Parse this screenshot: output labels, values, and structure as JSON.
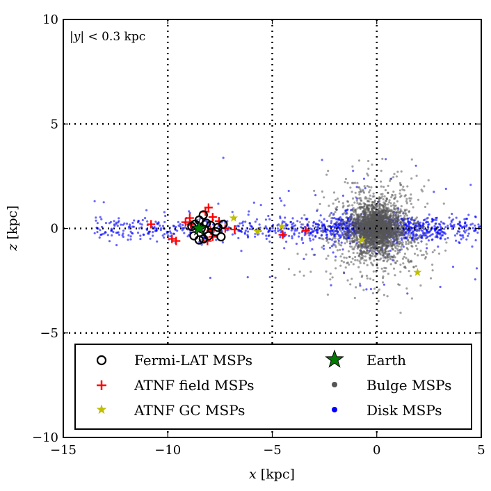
{
  "chart_data": {
    "type": "scatter",
    "title": "",
    "annotation": "|y| < 0.3 kpc",
    "xlabel": "x [kpc]",
    "ylabel": "z [kpc]",
    "xlim": [
      -15,
      5
    ],
    "ylim": [
      -10,
      10
    ],
    "xticks": [
      -15,
      -10,
      -5,
      0,
      5
    ],
    "yticks": [
      -10,
      -5,
      0,
      5,
      10
    ],
    "xtick_labels": [
      "−15",
      "−10",
      "−5",
      "0",
      "5"
    ],
    "ytick_labels": [
      "−10",
      "−5",
      "0",
      "5",
      "10"
    ],
    "grid": "dotted at x=-10,-5,0 and z=-5,0,5",
    "legend_position": "lower-center",
    "series": [
      {
        "name": "Fermi-LAT MSPs",
        "marker": "circle-open",
        "color": "#000000",
        "points": [
          [
            -8.3,
            0.65
          ],
          [
            -8.5,
            0.4
          ],
          [
            -8.15,
            0.25
          ],
          [
            -8.7,
            0.2
          ],
          [
            -8.25,
            -0.05
          ],
          [
            -7.95,
            0.15
          ],
          [
            -7.6,
            0.05
          ],
          [
            -7.35,
            0.2
          ],
          [
            -7.7,
            -0.15
          ],
          [
            -7.45,
            -0.4
          ],
          [
            -8.05,
            -0.35
          ],
          [
            -8.3,
            -0.5
          ],
          [
            -8.5,
            -0.55
          ],
          [
            -8.75,
            -0.35
          ],
          [
            -8.4,
            0.0
          ],
          [
            -8.85,
            0.1
          ]
        ]
      },
      {
        "name": "ATNF field MSPs",
        "marker": "plus",
        "color": "#ff0000",
        "points": [
          [
            -10.8,
            0.2
          ],
          [
            -9.8,
            -0.5
          ],
          [
            -9.6,
            -0.6
          ],
          [
            -9.15,
            0.3
          ],
          [
            -8.95,
            0.5
          ],
          [
            -8.05,
            1.0
          ],
          [
            -8.2,
            0.8
          ],
          [
            -7.85,
            0.55
          ],
          [
            -7.55,
            0.35
          ],
          [
            -7.85,
            -0.4
          ],
          [
            -8.1,
            -0.6
          ],
          [
            -7.95,
            -0.1
          ],
          [
            -6.8,
            -0.05
          ],
          [
            -4.5,
            -0.3
          ],
          [
            -3.4,
            -0.1
          ],
          [
            -8.9,
            0.2
          ],
          [
            -7.25,
            0.0
          ]
        ]
      },
      {
        "name": "ATNF GC MSPs",
        "marker": "star",
        "color": "#bfbf00",
        "points": [
          [
            -6.85,
            0.5
          ],
          [
            -5.7,
            -0.15
          ],
          [
            -4.55,
            0.1
          ],
          [
            -0.7,
            -0.55
          ],
          [
            1.95,
            -2.1
          ]
        ]
      },
      {
        "name": "Earth",
        "marker": "star-large",
        "color": "#007a00",
        "points": [
          [
            -8.5,
            0.0
          ]
        ]
      },
      {
        "name": "Bulge MSPs",
        "marker": "dot",
        "color": "#555555",
        "center": [
          0,
          0
        ],
        "spread_kpc": 1.3
      },
      {
        "name": "Disk MSPs",
        "marker": "dot",
        "color": "#0000ff",
        "x_range": [
          -13.5,
          5
        ],
        "z_scale_kpc": 0.6
      }
    ]
  },
  "legend": {
    "items": [
      {
        "label": "Fermi-LAT MSPs",
        "icon": "circle-open"
      },
      {
        "label": "Earth",
        "icon": "star"
      },
      {
        "label": "ATNF field MSPs",
        "icon": "plus"
      },
      {
        "label": "Bulge MSPs",
        "icon": "dot"
      },
      {
        "label": "ATNF GC MSPs",
        "icon": "star"
      },
      {
        "label": "Disk MSPs",
        "icon": "dot"
      }
    ]
  }
}
